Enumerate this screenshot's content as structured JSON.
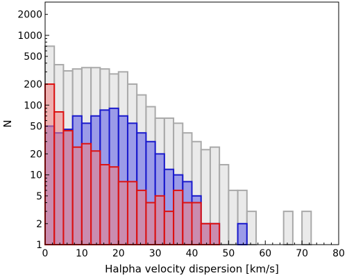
{
  "chart_data": {
    "type": "bar",
    "xlabel": "Halpha velocity dispersion [km/s]",
    "ylabel": "N",
    "xlim": [
      0,
      80
    ],
    "ylim": [
      1,
      3000
    ],
    "yscale": "log",
    "bin_width": 2.5,
    "grid": false,
    "x_ticks": [
      "0",
      "10",
      "20",
      "30",
      "40",
      "50",
      "60",
      "70",
      "80"
    ],
    "y_ticks": [
      "1",
      "2",
      "5",
      "10",
      "20",
      "50",
      "100",
      "200",
      "500",
      "1000",
      "2000"
    ],
    "series": [
      {
        "color": "#a9a9a9",
        "fill": "#d9d9d9",
        "bins": [
          {
            "x": 0,
            "y": 700
          },
          {
            "x": 2.5,
            "y": 380
          },
          {
            "x": 5,
            "y": 310
          },
          {
            "x": 7.5,
            "y": 330
          },
          {
            "x": 10,
            "y": 345
          },
          {
            "x": 12.5,
            "y": 345
          },
          {
            "x": 15,
            "y": 330
          },
          {
            "x": 17.5,
            "y": 280
          },
          {
            "x": 20,
            "y": 300
          },
          {
            "x": 22.5,
            "y": 200
          },
          {
            "x": 25,
            "y": 140
          },
          {
            "x": 27.5,
            "y": 95
          },
          {
            "x": 30,
            "y": 65
          },
          {
            "x": 32.5,
            "y": 65
          },
          {
            "x": 35,
            "y": 55
          },
          {
            "x": 37.5,
            "y": 40
          },
          {
            "x": 40,
            "y": 30
          },
          {
            "x": 42.5,
            "y": 23
          },
          {
            "x": 45,
            "y": 25
          },
          {
            "x": 47.5,
            "y": 14
          },
          {
            "x": 50,
            "y": 6
          },
          {
            "x": 52.5,
            "y": 6
          },
          {
            "x": 55,
            "y": 3
          },
          {
            "x": 65,
            "y": 3
          },
          {
            "x": 70,
            "y": 3
          }
        ]
      },
      {
        "color": "#1a1acc",
        "fill": "#5a5ae6",
        "bins": [
          {
            "x": 0,
            "y": 50
          },
          {
            "x": 2.5,
            "y": 40
          },
          {
            "x": 5,
            "y": 45
          },
          {
            "x": 7.5,
            "y": 70
          },
          {
            "x": 10,
            "y": 55
          },
          {
            "x": 12.5,
            "y": 70
          },
          {
            "x": 15,
            "y": 85
          },
          {
            "x": 17.5,
            "y": 90
          },
          {
            "x": 20,
            "y": 70
          },
          {
            "x": 22.5,
            "y": 55
          },
          {
            "x": 25,
            "y": 40
          },
          {
            "x": 27.5,
            "y": 30
          },
          {
            "x": 30,
            "y": 20
          },
          {
            "x": 32.5,
            "y": 12
          },
          {
            "x": 35,
            "y": 10
          },
          {
            "x": 37.5,
            "y": 8
          },
          {
            "x": 40,
            "y": 5
          },
          {
            "x": 42.5,
            "y": 2
          },
          {
            "x": 45,
            "y": 2
          },
          {
            "x": 52.5,
            "y": 2
          }
        ]
      },
      {
        "color": "#dd1111",
        "fill": "#f08080",
        "bins": [
          {
            "x": 0,
            "y": 200
          },
          {
            "x": 2.5,
            "y": 80
          },
          {
            "x": 5,
            "y": 43
          },
          {
            "x": 7.5,
            "y": 25
          },
          {
            "x": 10,
            "y": 28
          },
          {
            "x": 12.5,
            "y": 22
          },
          {
            "x": 15,
            "y": 14
          },
          {
            "x": 17.5,
            "y": 13
          },
          {
            "x": 20,
            "y": 8
          },
          {
            "x": 22.5,
            "y": 8
          },
          {
            "x": 25,
            "y": 6
          },
          {
            "x": 27.5,
            "y": 4
          },
          {
            "x": 30,
            "y": 5
          },
          {
            "x": 32.5,
            "y": 3
          },
          {
            "x": 35,
            "y": 6
          },
          {
            "x": 37.5,
            "y": 4
          },
          {
            "x": 40,
            "y": 4
          },
          {
            "x": 42.5,
            "y": 2
          },
          {
            "x": 45,
            "y": 2
          }
        ]
      }
    ]
  }
}
